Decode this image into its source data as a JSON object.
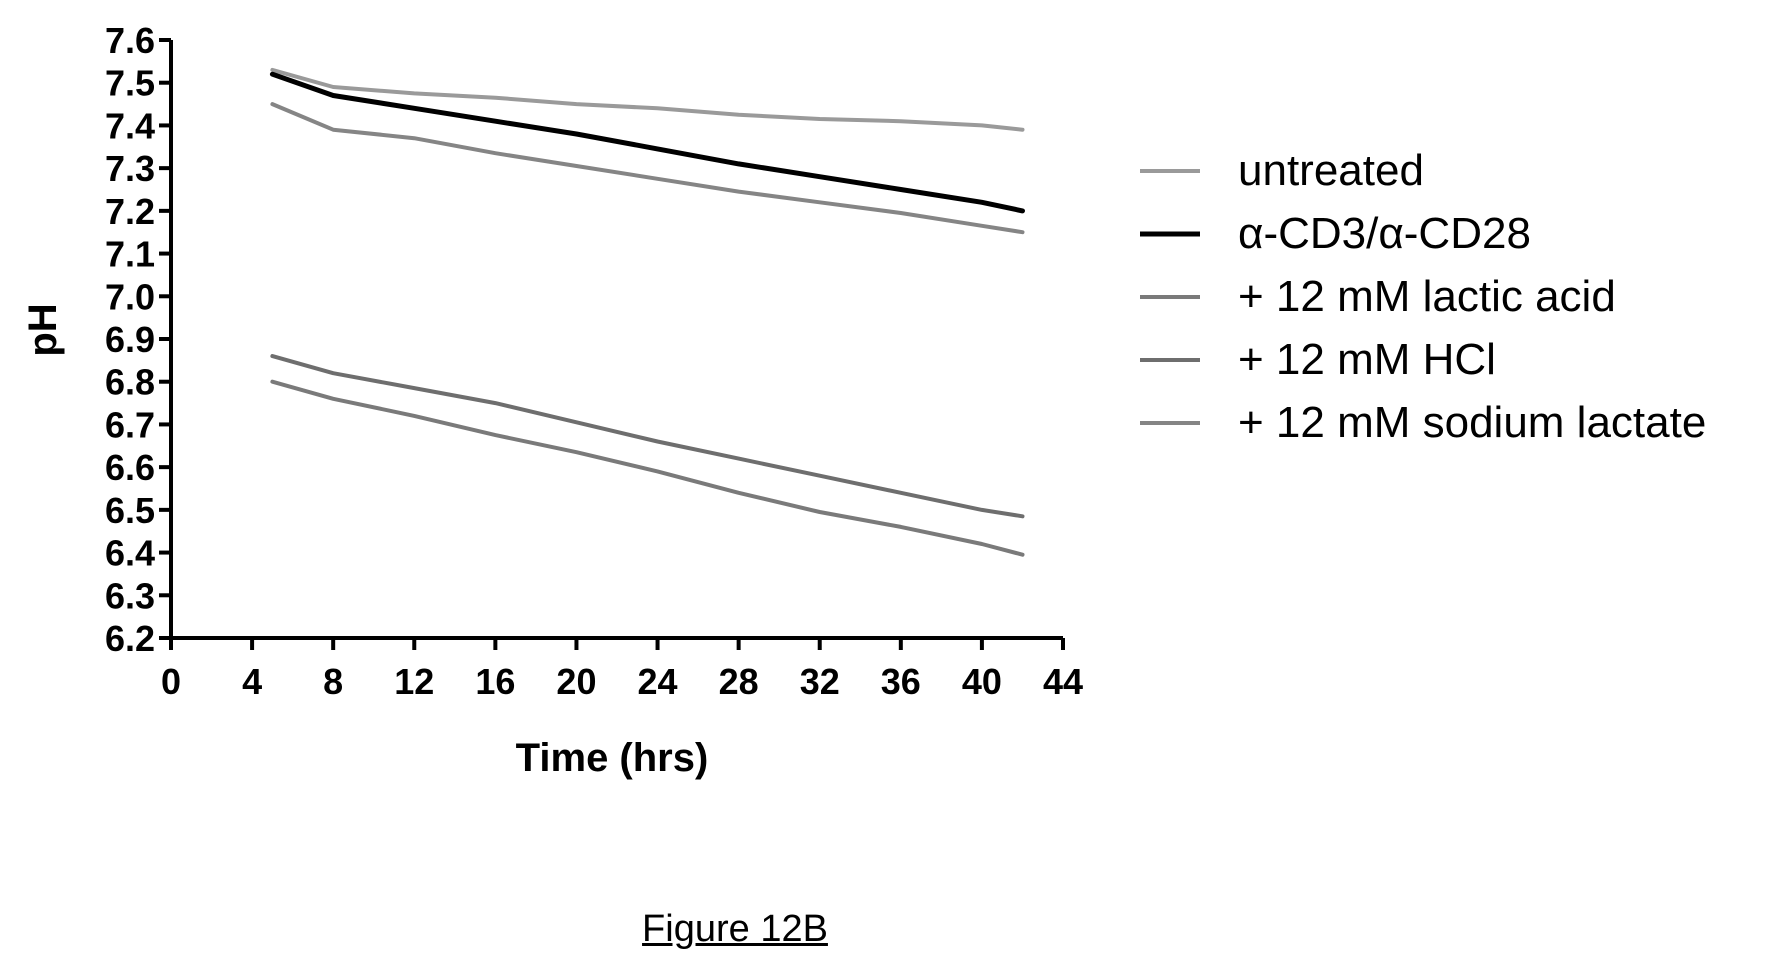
{
  "figure": {
    "caption": "Figure 12B"
  },
  "chart_data": {
    "type": "line",
    "xlabel": "Time (hrs)",
    "ylabel": "pH",
    "xlim": [
      0,
      44
    ],
    "ylim": [
      6.2,
      7.6
    ],
    "xticks": [
      "0",
      "4",
      "8",
      "12",
      "16",
      "20",
      "24",
      "28",
      "32",
      "36",
      "40",
      "44"
    ],
    "yticks": [
      "6.2",
      "6.3",
      "6.4",
      "6.5",
      "6.6",
      "6.7",
      "6.8",
      "6.9",
      "7.0",
      "7.1",
      "7.2",
      "7.3",
      "7.4",
      "7.5",
      "7.6"
    ],
    "grid": false,
    "legend_position": "right",
    "series": [
      {
        "name": "untreated",
        "color": "#9a9a9a",
        "x": [
          5,
          8,
          12,
          16,
          20,
          24,
          28,
          32,
          36,
          40,
          42
        ],
        "y": [
          7.53,
          7.49,
          7.475,
          7.465,
          7.45,
          7.44,
          7.425,
          7.415,
          7.41,
          7.4,
          7.39
        ]
      },
      {
        "name": "α-CD3/α-CD28",
        "color": "#000000",
        "x": [
          5,
          8,
          12,
          16,
          20,
          24,
          28,
          32,
          36,
          40,
          42
        ],
        "y": [
          7.52,
          7.47,
          7.44,
          7.41,
          7.38,
          7.345,
          7.31,
          7.28,
          7.25,
          7.22,
          7.2
        ]
      },
      {
        "name": "+ 12 mM lactic acid",
        "color": "#7a7a7a",
        "x": [
          5,
          8,
          12,
          16,
          20,
          24,
          28,
          32,
          36,
          40,
          42
        ],
        "y": [
          6.8,
          6.76,
          6.72,
          6.675,
          6.635,
          6.59,
          6.54,
          6.495,
          6.46,
          6.42,
          6.395
        ]
      },
      {
        "name": "+ 12 mM HCl",
        "color": "#6e6e6e",
        "x": [
          5,
          8,
          12,
          16,
          20,
          24,
          28,
          32,
          36,
          40,
          42
        ],
        "y": [
          6.86,
          6.82,
          6.785,
          6.75,
          6.705,
          6.66,
          6.62,
          6.58,
          6.54,
          6.5,
          6.485
        ]
      },
      {
        "name": "+ 12 mM sodium lactate",
        "color": "#858585",
        "x": [
          5,
          8,
          12,
          16,
          20,
          24,
          28,
          32,
          36,
          40,
          42
        ],
        "y": [
          7.45,
          7.39,
          7.37,
          7.335,
          7.305,
          7.275,
          7.245,
          7.22,
          7.195,
          7.165,
          7.15
        ]
      }
    ]
  }
}
